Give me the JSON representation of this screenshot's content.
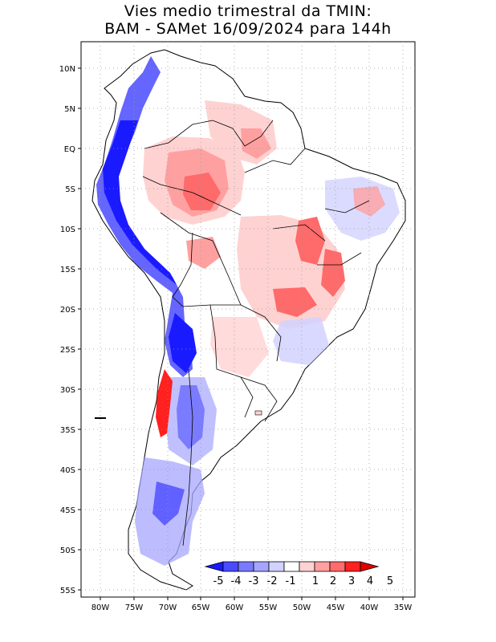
{
  "title": {
    "line1": "Vies medio trimestral da TMIN:",
    "line2": "BAM - SAMet 16/09/2024  para 144h"
  },
  "axes": {
    "lat_labels": [
      "10N",
      "5N",
      "EQ",
      "5S",
      "10S",
      "15S",
      "20S",
      "25S",
      "30S",
      "35S",
      "40S",
      "45S",
      "50S",
      "55S"
    ],
    "lon_labels": [
      "80W",
      "75W",
      "70W",
      "65W",
      "60W",
      "55W",
      "50W",
      "45W",
      "40W",
      "35W"
    ],
    "lat_range": [
      -56,
      13
    ],
    "lon_range": [
      -83,
      -34
    ],
    "grid": true
  },
  "colorbar": {
    "labels": [
      "-5",
      "-4",
      "-3",
      "-2",
      "-1",
      "1",
      "2",
      "3",
      "4",
      "5"
    ],
    "colors": [
      "#1a1aff",
      "#4a4aff",
      "#7a7aff",
      "#a5a5ff",
      "#d2d2ff",
      "#ffffff",
      "#ffd2d2",
      "#ffa0a0",
      "#ff6a6a",
      "#ff2020",
      "#e00000"
    ]
  },
  "colors": {
    "land_neutral": "#ffffff",
    "coastline": "#000000",
    "grid": "#999999"
  }
}
